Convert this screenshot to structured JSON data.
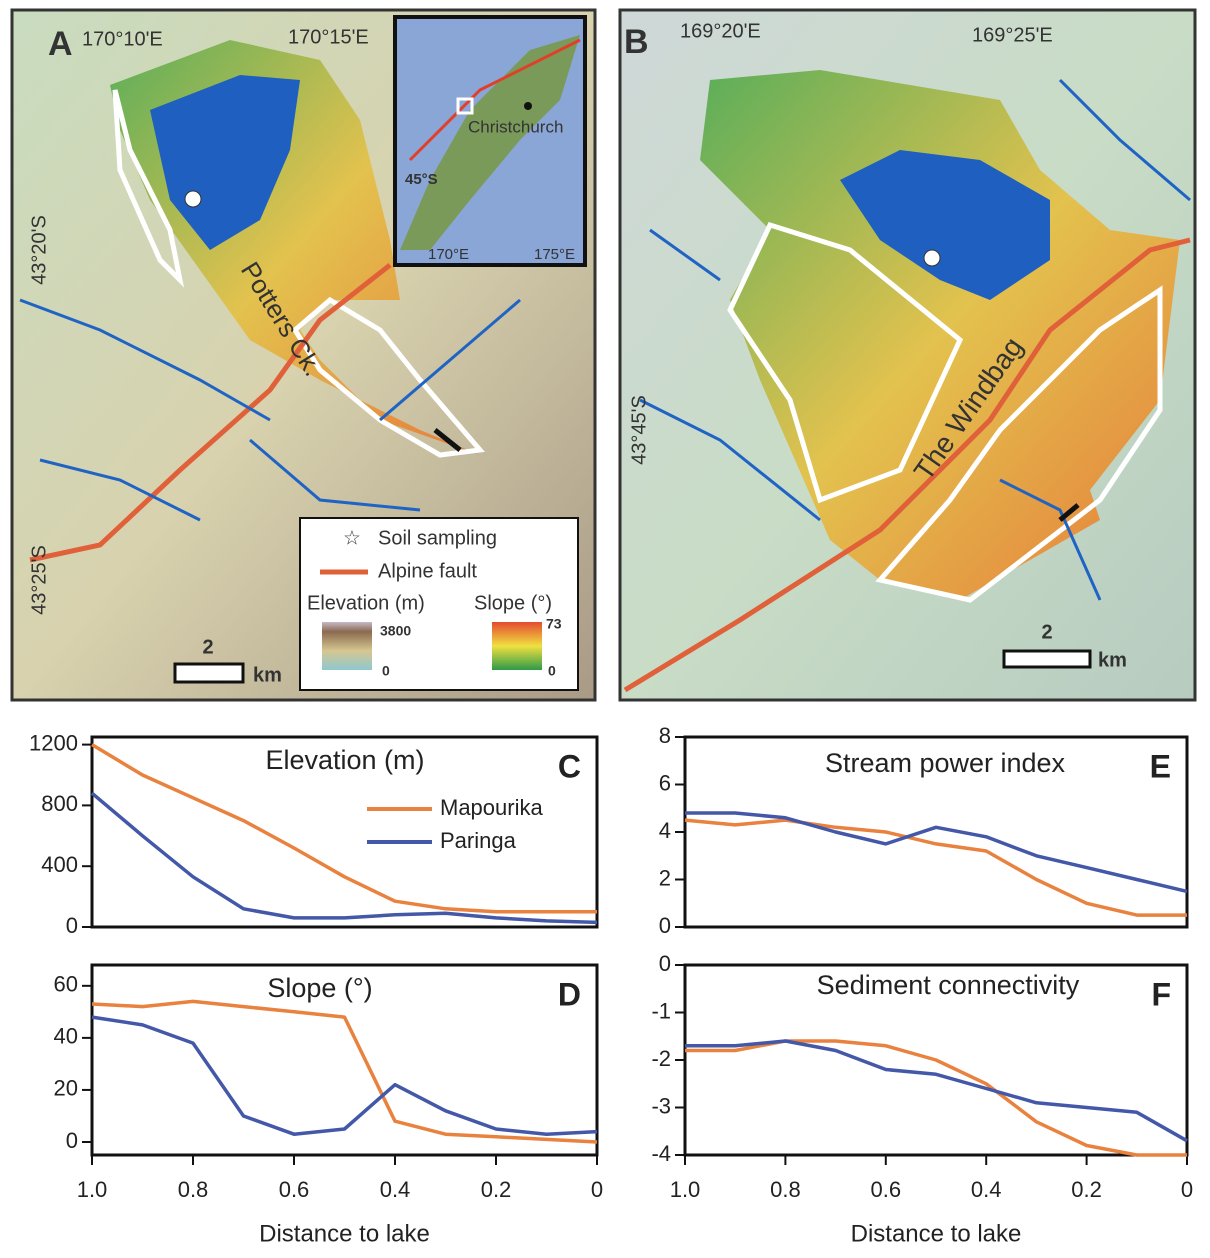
{
  "maps": {
    "a": {
      "letter": "A",
      "lon_left": "170°10'E",
      "lon_right": "170°15'E",
      "lat_top": "43°20'S",
      "lat_bottom": "43°25'S",
      "creek": "Potters Ck.",
      "inset": {
        "city": "Christchurch",
        "lat": "45°S",
        "lon_left": "170°E",
        "lon_right": "175°E"
      },
      "legend": {
        "soil": "Soil sampling",
        "fault": "Alpine fault",
        "elevation": "Elevation (m)",
        "slope": "Slope (°)",
        "elev_max": "3800",
        "elev_min": "0",
        "slope_max": "73",
        "slope_min": "0"
      },
      "scale": "2",
      "scale_unit": "km"
    },
    "b": {
      "letter": "B",
      "lon_left": "169°20'E",
      "lon_right": "169°25'E",
      "lat": "43°45'S",
      "stream": "The Windbag",
      "scale": "2",
      "scale_unit": "km"
    }
  },
  "chart_data": [
    {
      "type": "line",
      "title": "Elevation (m)",
      "panel": "C",
      "x": [
        1,
        0.9,
        0.8,
        0.7,
        0.6,
        0.5,
        0.4,
        0.3,
        0.2,
        0.1,
        0
      ],
      "xlim": [
        1,
        0
      ],
      "ylim": [
        0,
        1250
      ],
      "yticks": [
        0,
        400,
        800,
        1200
      ],
      "legend": "upper right",
      "series": [
        {
          "name": "Mapourika",
          "color": "#e8823e",
          "values": [
            1200,
            1000,
            850,
            700,
            520,
            330,
            170,
            120,
            100,
            100,
            100
          ]
        },
        {
          "name": "Paringa",
          "color": "#4358a8",
          "values": [
            880,
            600,
            330,
            120,
            60,
            60,
            80,
            90,
            60,
            40,
            30
          ]
        }
      ]
    },
    {
      "type": "line",
      "title": "Slope (°)",
      "panel": "D",
      "x": [
        1,
        0.9,
        0.8,
        0.7,
        0.6,
        0.5,
        0.4,
        0.3,
        0.2,
        0.1,
        0
      ],
      "xlim": [
        1,
        0
      ],
      "xticks": [
        {
          "value": 1,
          "label": "1.0"
        },
        0.8,
        0.6,
        0.4,
        0.2,
        0
      ],
      "xlabel": "Distance to lake",
      "ylim": [
        -5,
        68
      ],
      "yticks": [
        0,
        20,
        40,
        60
      ],
      "series": [
        {
          "color": "#e8823e",
          "values": [
            53,
            52,
            54,
            52,
            50,
            48,
            8,
            3,
            2,
            1,
            0
          ]
        },
        {
          "color": "#4358a8",
          "values": [
            48,
            45,
            38,
            10,
            3,
            5,
            22,
            12,
            5,
            3,
            4
          ]
        }
      ]
    },
    {
      "type": "line",
      "title": "Stream power index",
      "panel": "E",
      "x": [
        1,
        0.9,
        0.8,
        0.7,
        0.6,
        0.5,
        0.4,
        0.3,
        0.2,
        0.1,
        0
      ],
      "xlim": [
        1,
        0
      ],
      "ylim": [
        0,
        8
      ],
      "yticks": [
        0,
        2,
        4,
        6,
        8
      ],
      "series": [
        {
          "color": "#e8823e",
          "values": [
            4.5,
            4.3,
            4.5,
            4.2,
            4.0,
            3.5,
            3.2,
            2.0,
            1.0,
            0.5,
            0.5
          ]
        },
        {
          "color": "#4358a8",
          "values": [
            4.8,
            4.8,
            4.6,
            4.0,
            3.5,
            4.2,
            3.8,
            3.0,
            2.5,
            2.0,
            1.5
          ]
        }
      ]
    },
    {
      "type": "line",
      "title": "Sediment connectivity",
      "panel": "F",
      "x": [
        1,
        0.9,
        0.8,
        0.7,
        0.6,
        0.5,
        0.4,
        0.3,
        0.2,
        0.1,
        0
      ],
      "xlim": [
        1,
        0
      ],
      "xticks": [
        {
          "value": 1,
          "label": "1.0"
        },
        0.8,
        0.6,
        0.4,
        0.2,
        0
      ],
      "xlabel": "Distance to lake",
      "ylim": [
        -4,
        0
      ],
      "yticks": [
        -4,
        -3,
        -2,
        -1,
        0
      ],
      "series": [
        {
          "color": "#e8823e",
          "values": [
            -1.8,
            -1.8,
            -1.6,
            -1.6,
            -1.7,
            -2.0,
            -2.5,
            -3.3,
            -3.8,
            -4,
            -4
          ]
        },
        {
          "color": "#4358a8",
          "values": [
            -1.7,
            -1.7,
            -1.6,
            -1.8,
            -2.2,
            -2.3,
            -2.6,
            -2.9,
            -3.0,
            -3.1,
            -3.7
          ]
        }
      ]
    }
  ]
}
